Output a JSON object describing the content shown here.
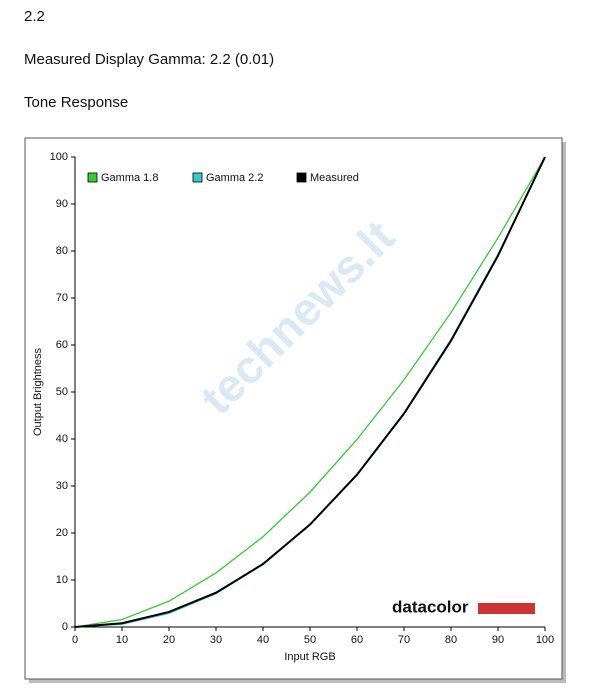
{
  "header": {
    "value": "2.2",
    "measured": "Measured Display Gamma: 2.2 (0.01)",
    "section": "Tone Response"
  },
  "chart_data": {
    "type": "line",
    "x": [
      0,
      10,
      20,
      30,
      40,
      50,
      60,
      70,
      80,
      90,
      100
    ],
    "series": [
      {
        "name": "Gamma 1.8",
        "color": "#33cc33",
        "values": [
          0,
          1.6,
          5.5,
          11.5,
          19.2,
          28.7,
          39.9,
          52.6,
          66.9,
          82.8,
          100
        ]
      },
      {
        "name": "Gamma 2.2",
        "color": "#33cccc",
        "values": [
          0,
          0.6,
          2.9,
          7.1,
          13.3,
          21.8,
          32.5,
          45.6,
          61.2,
          79.3,
          100
        ]
      },
      {
        "name": "Measured",
        "color": "#000000",
        "values": [
          0,
          0.8,
          3.2,
          7.3,
          13.4,
          21.8,
          32.4,
          45.4,
          60.9,
          79.0,
          100
        ]
      }
    ],
    "xlim": [
      0,
      100
    ],
    "ylim": [
      0,
      100
    ],
    "xticks": [
      0,
      10,
      20,
      30,
      40,
      50,
      60,
      70,
      80,
      90,
      100
    ],
    "yticks": [
      0,
      10,
      20,
      30,
      40,
      50,
      60,
      70,
      80,
      90,
      100
    ],
    "xlabel": "Input RGB",
    "ylabel": "Output Brightness",
    "logo": "datacolor",
    "watermark": "technews.lt"
  }
}
